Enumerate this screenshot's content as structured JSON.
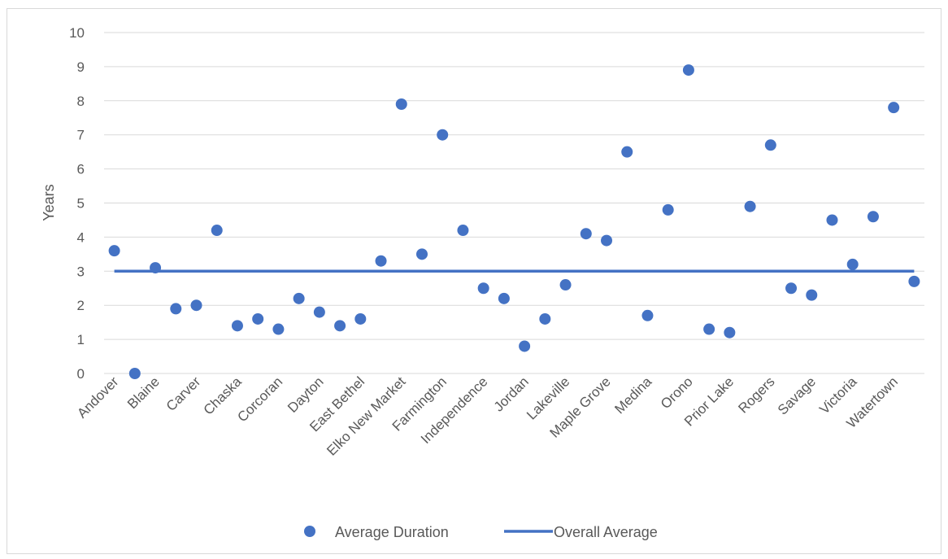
{
  "chart_data": {
    "type": "scatter",
    "title": "",
    "xlabel": "",
    "ylabel": "Years",
    "ylim": [
      0,
      10
    ],
    "yticks": [
      "0",
      "1",
      "2",
      "3",
      "4",
      "5",
      "6",
      "7",
      "8",
      "9",
      "10"
    ],
    "grid": true,
    "legend_position": "bottom",
    "tick_labels": [
      "Andover",
      "Blaine",
      "Carver",
      "Chaska",
      "Corcoran",
      "Dayton",
      "East Bethel",
      "Elko New Market",
      "Farmington",
      "Independence",
      "Jordan",
      "Lakeville",
      "Maple Grove",
      "Medina",
      "Orono",
      "Prior Lake",
      "Rogers",
      "Savage",
      "Victoria",
      "Watertown"
    ],
    "tick_label_indices": [
      0,
      2,
      4,
      6,
      8,
      10,
      12,
      14,
      16,
      18,
      20,
      22,
      24,
      26,
      28,
      30,
      32,
      34,
      36,
      38
    ],
    "point_count": 40,
    "series": [
      {
        "name": "Average Duration",
        "kind": "scatter",
        "color": "#4472c4",
        "values": [
          3.6,
          0.0,
          3.1,
          1.9,
          2.0,
          4.2,
          1.4,
          1.6,
          1.3,
          2.2,
          1.8,
          1.4,
          1.6,
          3.3,
          7.9,
          3.5,
          7.0,
          4.2,
          2.5,
          2.2,
          0.8,
          1.6,
          2.6,
          4.1,
          3.9,
          6.5,
          1.7,
          4.8,
          8.9,
          1.3,
          1.2,
          4.9,
          6.7,
          2.5,
          2.3,
          4.5,
          3.2,
          4.6,
          7.8,
          2.7
        ]
      },
      {
        "name": "Overall Average",
        "kind": "line",
        "color": "#4472c4",
        "value": 3.0
      }
    ]
  }
}
